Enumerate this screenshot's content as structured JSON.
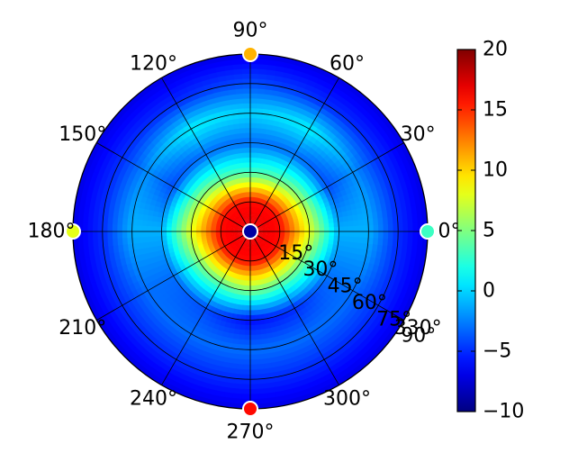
{
  "chart_data": {
    "type": "heatmap",
    "subtype": "polar",
    "angle_tick_labels": [
      "90°",
      "60°",
      "30°",
      "0°",
      "330°",
      "300°",
      "270°",
      "240°",
      "210°",
      "180°",
      "150°",
      "120°"
    ],
    "angle_tick_values": [
      90,
      60,
      30,
      0,
      330,
      300,
      270,
      240,
      210,
      180,
      150,
      120
    ],
    "radial_tick_labels": [
      "15°",
      "30°",
      "45°",
      "60°",
      "75°",
      "90°"
    ],
    "radial_tick_values": [
      15,
      30,
      45,
      60,
      75,
      90
    ],
    "rlim": [
      0,
      90
    ],
    "grid": true,
    "colorbar": {
      "position": "right",
      "colormap": "jet",
      "vmin": -10,
      "vmax": 20,
      "tick_labels": [
        "20",
        "15",
        "10",
        "5",
        "0",
        "−5",
        "−10"
      ],
      "tick_values": [
        20,
        15,
        10,
        5,
        0,
        -5,
        -10
      ]
    },
    "field_samples": {
      "elevation": [
        0,
        15,
        30,
        45,
        60,
        75,
        90
      ],
      "azimuth": [
        0,
        30,
        60,
        90,
        120,
        150,
        180,
        210,
        240,
        270,
        300,
        330
      ],
      "values": [
        [
          17,
          17,
          17,
          17,
          17,
          17,
          17,
          17,
          17,
          17,
          17,
          17
        ],
        [
          16,
          16,
          16,
          16,
          16,
          16,
          16,
          16,
          16,
          16,
          16,
          16
        ],
        [
          8,
          6,
          4,
          3,
          4,
          6,
          8,
          5,
          4,
          5,
          4,
          5
        ],
        [
          -1,
          -4,
          -3,
          -3,
          -3,
          -4,
          -1,
          -3,
          -4,
          -6,
          -5,
          -3
        ],
        [
          -1,
          -2,
          1,
          0,
          1,
          -2,
          -1,
          -3,
          -3,
          -3,
          -3,
          -3
        ],
        [
          -5,
          -5,
          -5,
          -4,
          -5,
          -5,
          -5,
          -5,
          -5,
          -5,
          -5,
          -5
        ],
        [
          -7,
          -7,
          -7,
          -7,
          -7,
          -7,
          -7,
          -7,
          -7,
          -7,
          -7,
          -7
        ]
      ]
    },
    "edge_markers": [
      {
        "azimuth": 90,
        "value": 11
      },
      {
        "azimuth": 0,
        "value": 3
      },
      {
        "azimuth": 180,
        "value": 8
      },
      {
        "azimuth": 270,
        "value": 16
      },
      {
        "azimuth": 0,
        "elevation": 0,
        "value": -9,
        "at_center": true
      }
    ]
  }
}
